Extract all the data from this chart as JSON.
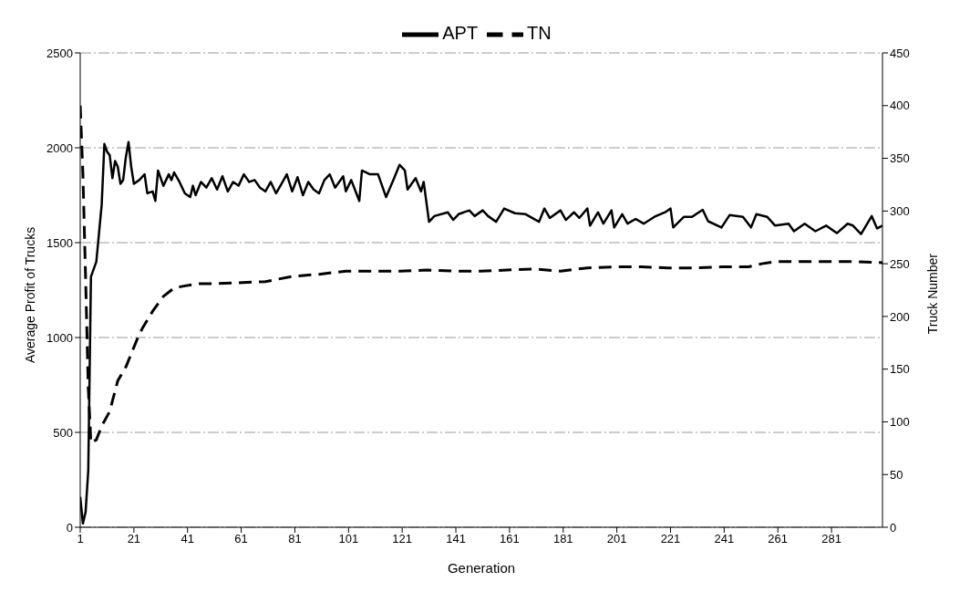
{
  "chart_data": {
    "type": "line",
    "xlabel": "Generation",
    "ylabel": "Average Profit of Trucks",
    "y2label": "Truck Number",
    "legend": "top",
    "grid": "y",
    "marker": "none",
    "xlim": [
      1,
      300
    ],
    "xticks": [
      1,
      21,
      41,
      61,
      81,
      101,
      121,
      141,
      161,
      181,
      201,
      221,
      241,
      261,
      281
    ],
    "ylim": [
      0,
      2500
    ],
    "yticks": [
      0,
      500,
      1000,
      1500,
      2000,
      2500
    ],
    "y2lim": [
      0,
      450
    ],
    "y2ticks": [
      0,
      50,
      100,
      150,
      200,
      250,
      300,
      350,
      400,
      450
    ],
    "series": [
      {
        "name": "APT",
        "color": "#000000",
        "line_style": "solid",
        "x": [
          1,
          2,
          3,
          4,
          5,
          7,
          8,
          9,
          10,
          11,
          12,
          13,
          14,
          15,
          16,
          17,
          18,
          19,
          20,
          21,
          23,
          25,
          26,
          28,
          29,
          30,
          32,
          34,
          35,
          36,
          38,
          40,
          42,
          43,
          44,
          46,
          48,
          50,
          52,
          54,
          56,
          58,
          60,
          62,
          64,
          66,
          68,
          70,
          72,
          74,
          76,
          78,
          80,
          82,
          84,
          86,
          88,
          90,
          92,
          94,
          96,
          99,
          100,
          102,
          105,
          106,
          109,
          112,
          115,
          118,
          120,
          122,
          123,
          126,
          128,
          129,
          131,
          133,
          138,
          140,
          142,
          146,
          148,
          151,
          153,
          156,
          159,
          163,
          167,
          172,
          174,
          176,
          180,
          182,
          185,
          187,
          190,
          191,
          194,
          196,
          199,
          200,
          203,
          205,
          208,
          211,
          215,
          219,
          221,
          222,
          226,
          229,
          233,
          235,
          240,
          243,
          248,
          251,
          253,
          257,
          260,
          265,
          267,
          271,
          275,
          279,
          283,
          287,
          289,
          292,
          296,
          298,
          300
        ],
        "values": [
          160,
          20,
          80,
          300,
          1320,
          1400,
          1550,
          1700,
          2020,
          1980,
          1960,
          1840,
          1930,
          1900,
          1810,
          1830,
          1950,
          2030,
          1900,
          1810,
          1830,
          1860,
          1760,
          1770,
          1720,
          1880,
          1800,
          1860,
          1830,
          1870,
          1820,
          1760,
          1740,
          1800,
          1750,
          1820,
          1790,
          1840,
          1780,
          1850,
          1770,
          1820,
          1800,
          1860,
          1820,
          1830,
          1790,
          1770,
          1820,
          1760,
          1810,
          1860,
          1770,
          1845,
          1750,
          1820,
          1780,
          1760,
          1830,
          1860,
          1790,
          1850,
          1770,
          1830,
          1720,
          1880,
          1860,
          1860,
          1740,
          1840,
          1910,
          1880,
          1780,
          1840,
          1770,
          1820,
          1610,
          1640,
          1660,
          1620,
          1650,
          1670,
          1640,
          1670,
          1640,
          1610,
          1680,
          1655,
          1650,
          1610,
          1680,
          1630,
          1670,
          1620,
          1660,
          1630,
          1680,
          1590,
          1660,
          1600,
          1670,
          1580,
          1650,
          1600,
          1625,
          1600,
          1636,
          1660,
          1680,
          1580,
          1636,
          1636,
          1673,
          1613,
          1580,
          1645,
          1636,
          1580,
          1650,
          1636,
          1590,
          1600,
          1560,
          1600,
          1560,
          1590,
          1550,
          1600,
          1590,
          1545,
          1640,
          1575,
          1590
        ]
      },
      {
        "name": "TN",
        "color": "#000000",
        "line_style": "dashed",
        "axis": "y2",
        "x": [
          1,
          2,
          3,
          4,
          5,
          7,
          9,
          12,
          15,
          18,
          22,
          24,
          28,
          32,
          36,
          40,
          45,
          50,
          60,
          70,
          80,
          90,
          100,
          110,
          120,
          130,
          140,
          150,
          160,
          170,
          180,
          190,
          200,
          210,
          220,
          230,
          240,
          250,
          255,
          260,
          270,
          280,
          290,
          300
        ],
        "values": [
          400,
          335,
          237,
          132,
          80,
          83,
          96,
          110,
          139,
          152,
          177,
          188,
          205,
          219,
          227,
          229,
          231,
          231,
          232,
          233,
          238,
          240,
          243,
          243,
          243,
          244,
          243,
          243,
          244,
          245,
          243,
          246,
          247,
          247,
          246,
          246,
          247,
          247,
          250,
          252,
          252,
          252,
          252,
          251
        ]
      }
    ]
  }
}
